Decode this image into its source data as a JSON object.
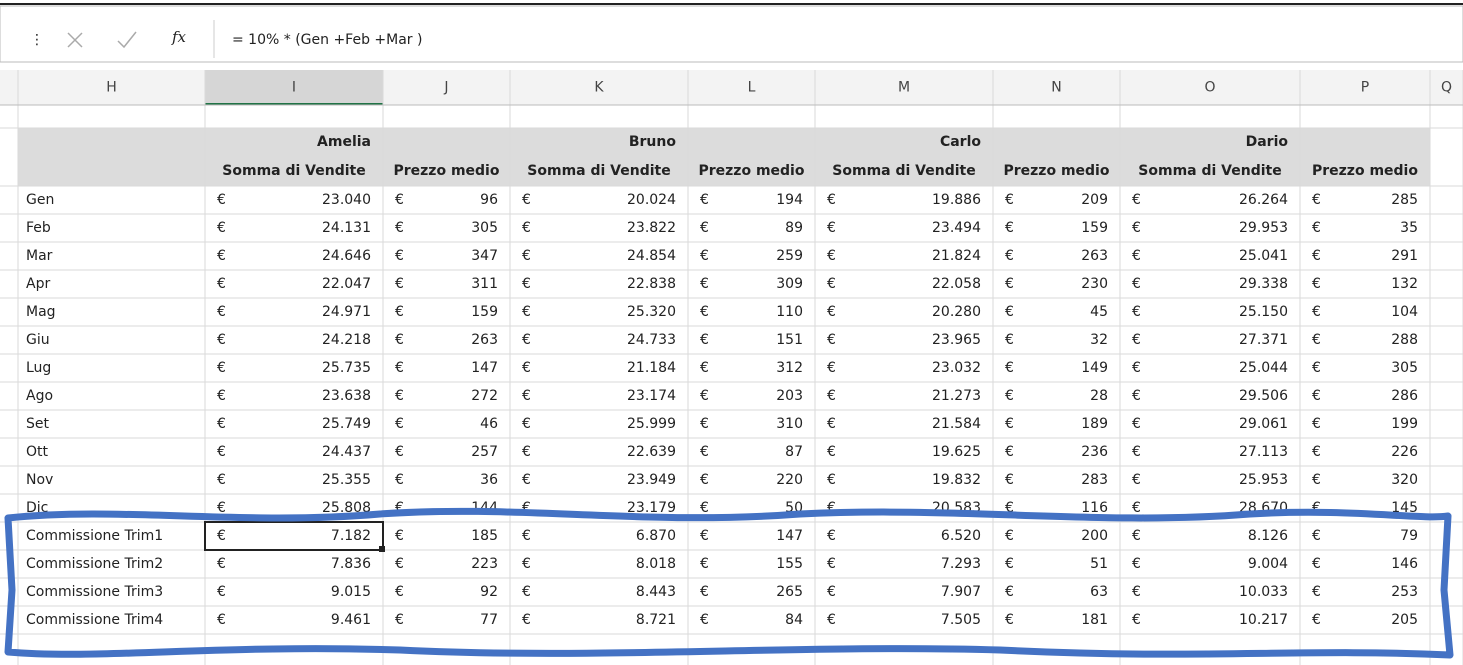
{
  "toolbar": {
    "fx": "fx",
    "formula": "= 10% * (Gen +Feb +Mar )"
  },
  "column_letters": [
    "H",
    "I",
    "J",
    "K",
    "L",
    "M",
    "N",
    "O",
    "P",
    "Q"
  ],
  "group_names": [
    "Amelia",
    "Bruno",
    "Carlo",
    "Dario"
  ],
  "column_headers": [
    "Somma di Vendite",
    "Prezzo medio",
    "Somma di Vendite",
    "Prezzo medio",
    "Somma di Vendite",
    "Prezzo medio",
    "Somma di Vendite",
    "Prezzo medio"
  ],
  "currency": "€",
  "rows": [
    [
      "Gen",
      "23.040",
      "96",
      "20.024",
      "194",
      "19.886",
      "209",
      "26.264",
      "285"
    ],
    [
      "Feb",
      "24.131",
      "305",
      "23.822",
      "89",
      "23.494",
      "159",
      "29.953",
      "35"
    ],
    [
      "Mar",
      "24.646",
      "347",
      "24.854",
      "259",
      "21.824",
      "263",
      "25.041",
      "291"
    ],
    [
      "Apr",
      "22.047",
      "311",
      "22.838",
      "309",
      "22.058",
      "230",
      "29.338",
      "132"
    ],
    [
      "Mag",
      "24.971",
      "159",
      "25.320",
      "110",
      "20.280",
      "45",
      "25.150",
      "104"
    ],
    [
      "Giu",
      "24.218",
      "263",
      "24.733",
      "151",
      "23.965",
      "32",
      "27.371",
      "288"
    ],
    [
      "Lug",
      "25.735",
      "147",
      "21.184",
      "312",
      "23.032",
      "149",
      "25.044",
      "305"
    ],
    [
      "Ago",
      "23.638",
      "272",
      "23.174",
      "203",
      "21.273",
      "28",
      "29.506",
      "286"
    ],
    [
      "Set",
      "25.749",
      "46",
      "25.999",
      "310",
      "21.584",
      "189",
      "29.061",
      "199"
    ],
    [
      "Ott",
      "24.437",
      "257",
      "22.639",
      "87",
      "19.625",
      "236",
      "27.113",
      "226"
    ],
    [
      "Nov",
      "25.355",
      "36",
      "23.949",
      "220",
      "19.832",
      "283",
      "25.953",
      "320"
    ],
    [
      "Dic",
      "25.808",
      "144",
      "23.179",
      "50",
      "20.583",
      "116",
      "28.670",
      "145"
    ],
    [
      "Commissione Trim1",
      "7.182",
      "185",
      "6.870",
      "147",
      "6.520",
      "200",
      "8.126",
      "79"
    ],
    [
      "Commissione Trim2",
      "7.836",
      "223",
      "8.018",
      "155",
      "7.293",
      "51",
      "9.004",
      "146"
    ],
    [
      "Commissione Trim3",
      "9.015",
      "92",
      "8.443",
      "265",
      "7.907",
      "63",
      "10.033",
      "253"
    ],
    [
      "Commissione Trim4",
      "9.461",
      "77",
      "8.721",
      "84",
      "7.505",
      "181",
      "10.217",
      "205"
    ]
  ]
}
